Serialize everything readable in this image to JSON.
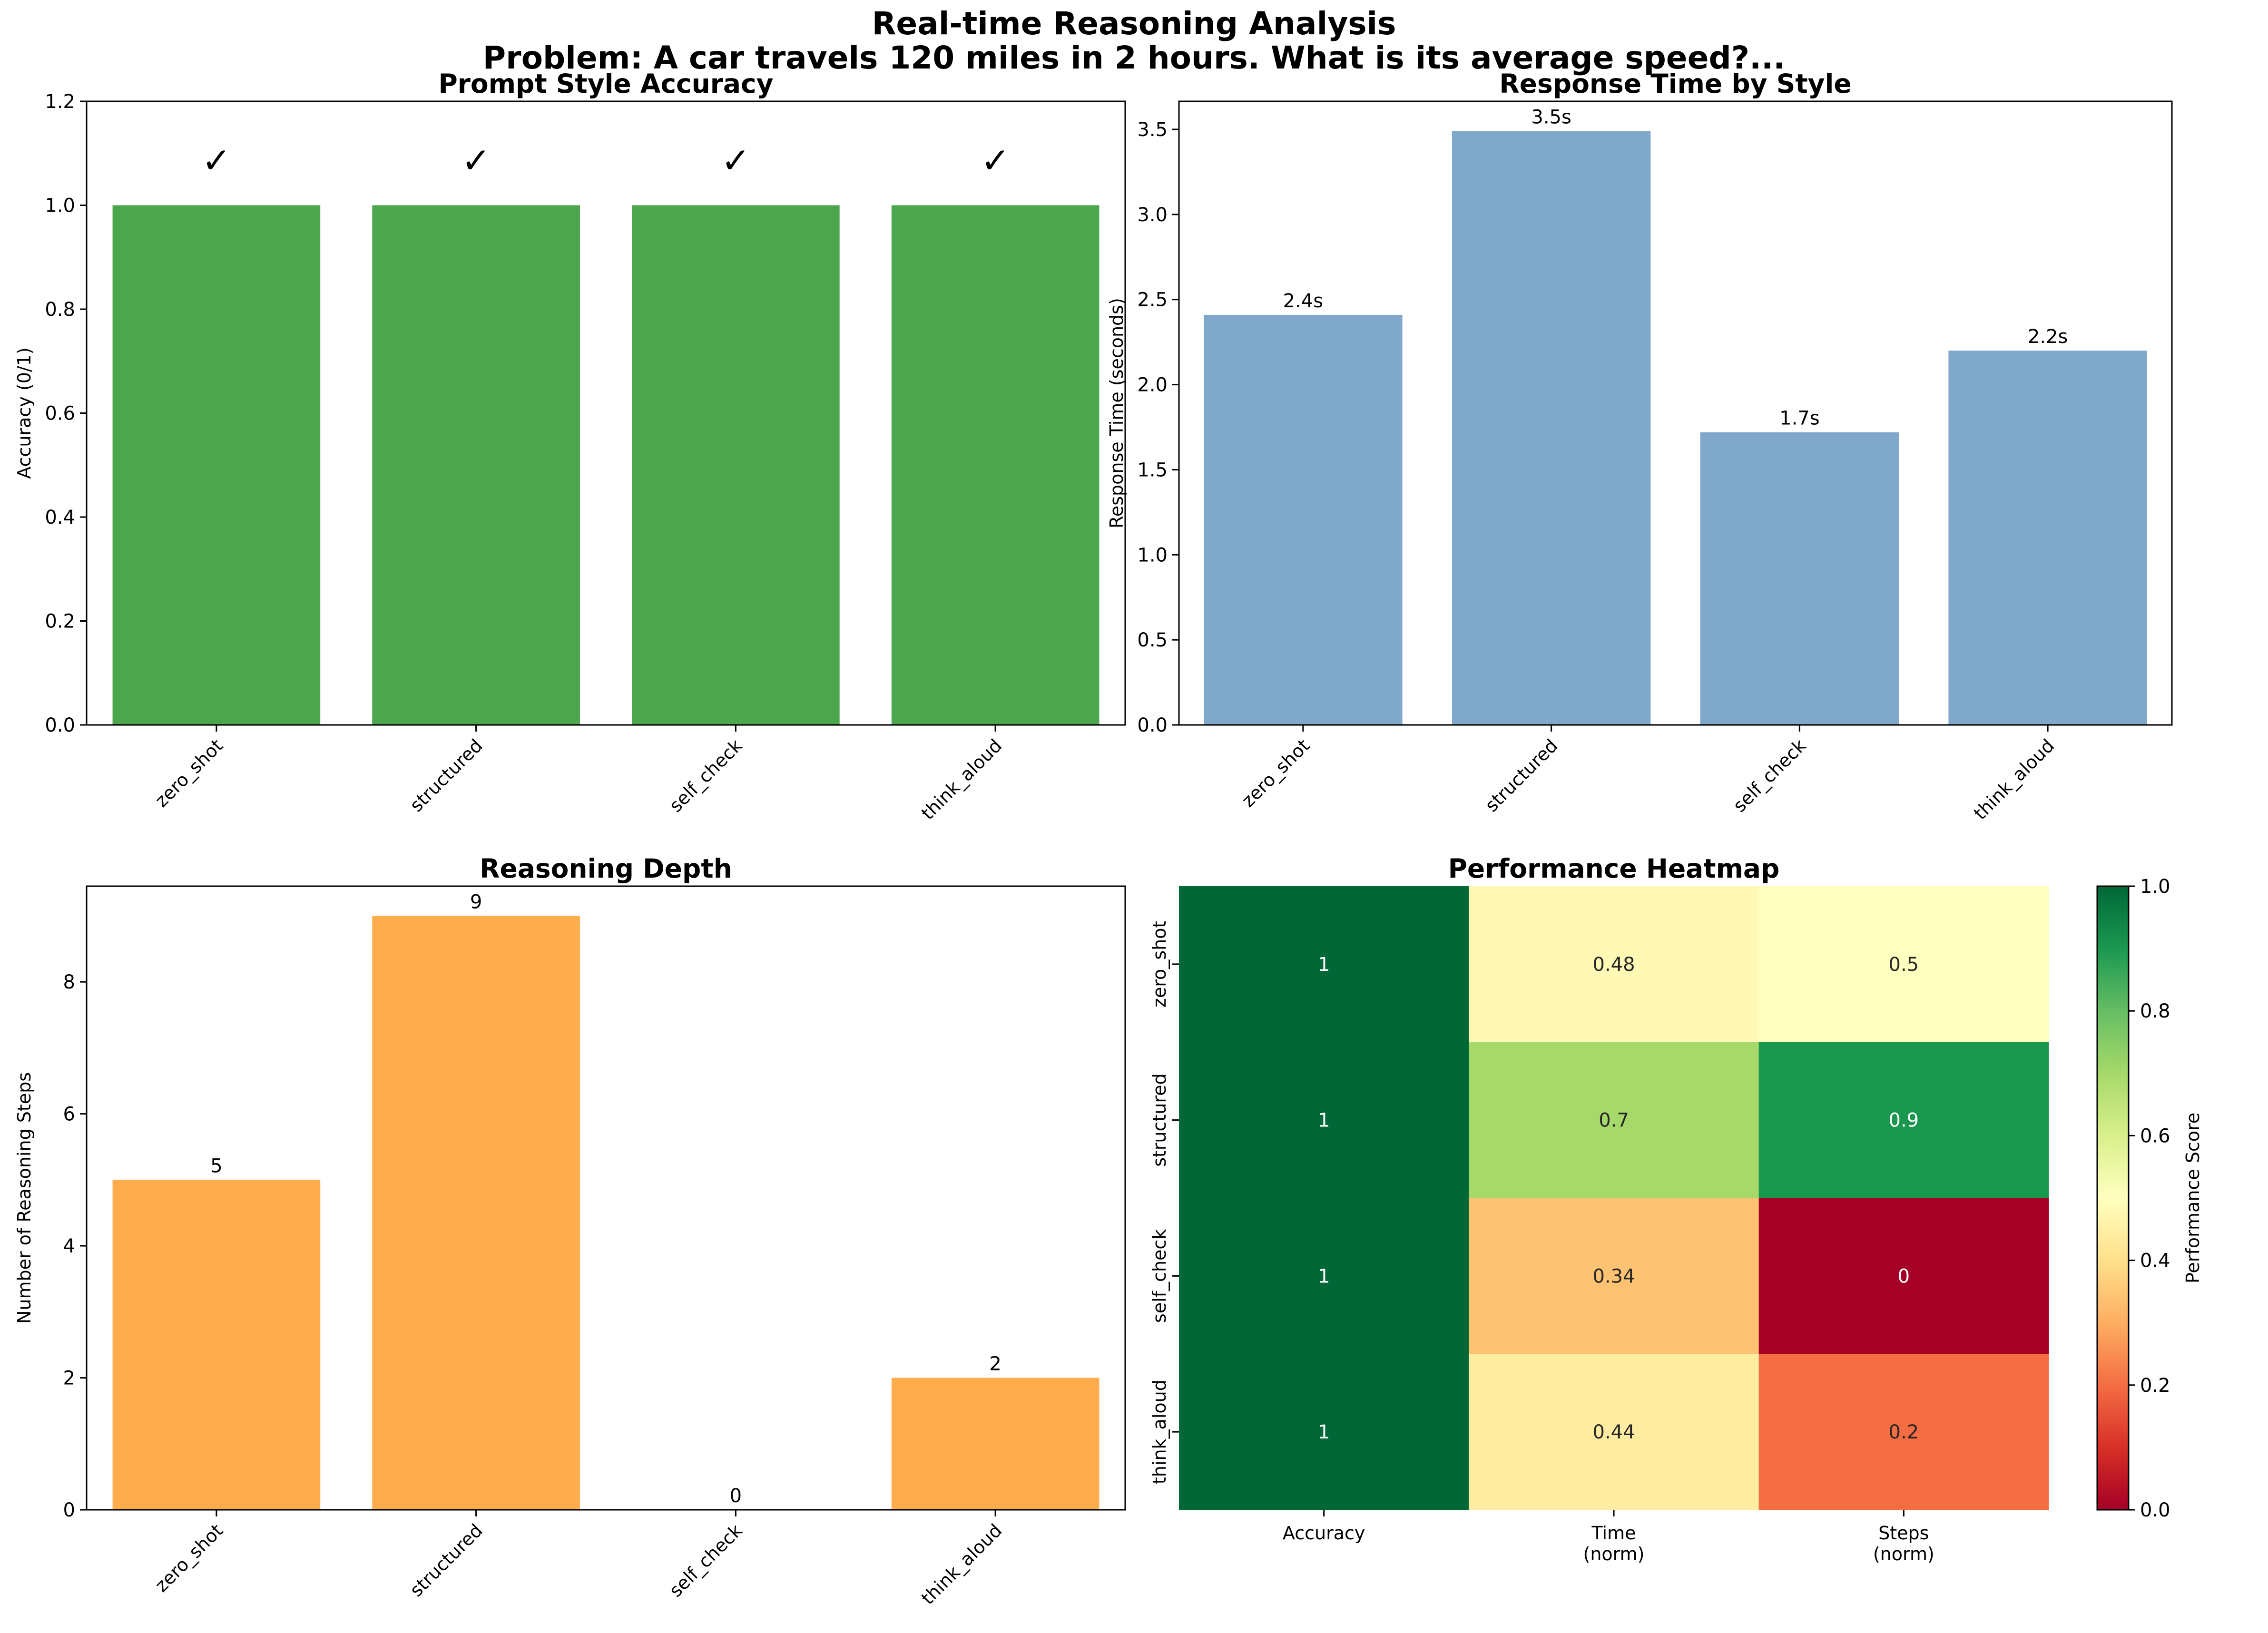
{
  "suptitle": {
    "line1": "Real-time Reasoning Analysis",
    "line2": "Problem: A car travels 120 miles in 2 hours. What is its average speed?..."
  },
  "colors": {
    "accuracy_bar": "#4ca64c",
    "time_bar": "#7fa8ca",
    "steps_bar": "#ffad4c",
    "axis": "#000000"
  },
  "chart_data": [
    {
      "type": "bar",
      "title": "Prompt Style Accuracy",
      "xlabel": "",
      "ylabel": "Accuracy (0/1)",
      "categories": [
        "zero_shot",
        "structured",
        "self_check",
        "think_aloud"
      ],
      "values": [
        1,
        1,
        1,
        1
      ],
      "data_labels": [
        "✓",
        "✓",
        "✓",
        "✓"
      ],
      "ylim": [
        0,
        1.2
      ],
      "yticks": [
        "0.0",
        "0.2",
        "0.4",
        "0.6",
        "0.8",
        "1.0",
        "1.2"
      ],
      "grid": false
    },
    {
      "type": "bar",
      "title": "Response Time by Style",
      "xlabel": "",
      "ylabel": "Response Time (seconds)",
      "categories": [
        "zero_shot",
        "structured",
        "self_check",
        "think_aloud"
      ],
      "values": [
        2.41,
        3.49,
        1.72,
        2.2
      ],
      "data_labels": [
        "2.4s",
        "3.5s",
        "1.7s",
        "2.2s"
      ],
      "ylim": [
        0,
        3.665
      ],
      "yticks": [
        "0.0",
        "0.5",
        "1.0",
        "1.5",
        "2.0",
        "2.5",
        "3.0",
        "3.5"
      ],
      "grid": false
    },
    {
      "type": "bar",
      "title": "Reasoning Depth",
      "xlabel": "",
      "ylabel": "Number of Reasoning Steps",
      "categories": [
        "zero_shot",
        "structured",
        "self_check",
        "think_aloud"
      ],
      "values": [
        5,
        9,
        0,
        2
      ],
      "data_labels": [
        "5",
        "9",
        "0",
        "2"
      ],
      "ylim": [
        0,
        9.45
      ],
      "yticks": [
        "0",
        "2",
        "4",
        "6",
        "8"
      ],
      "grid": false
    },
    {
      "type": "heatmap",
      "title": "Performance Heatmap",
      "rows": [
        "zero_shot",
        "structured",
        "self_check",
        "think_aloud"
      ],
      "columns": [
        [
          "Accuracy"
        ],
        [
          "Time",
          "(norm)"
        ],
        [
          "Steps",
          "(norm)"
        ]
      ],
      "values": [
        [
          1,
          0.48,
          0.5
        ],
        [
          1,
          0.7,
          0.9
        ],
        [
          1,
          0.34,
          0
        ],
        [
          1,
          0.44,
          0.2
        ]
      ],
      "annotations": [
        [
          "1",
          "0.48",
          "0.5"
        ],
        [
          "1",
          "0.7",
          "0.9"
        ],
        [
          "1",
          "0.34",
          "0"
        ],
        [
          "1",
          "0.44",
          "0.2"
        ]
      ],
      "colorbar": {
        "label": "Performance Score",
        "colormap": "RdYlGn",
        "range": [
          0,
          1
        ],
        "ticks": [
          "0.0",
          "0.2",
          "0.4",
          "0.6",
          "0.8",
          "1.0"
        ]
      }
    }
  ]
}
